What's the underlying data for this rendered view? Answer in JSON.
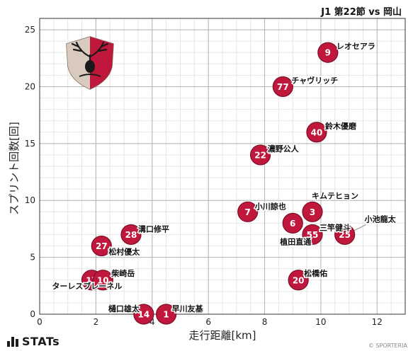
{
  "header": {
    "title": "J1 第22節 vs 岡山"
  },
  "footer": {
    "brand": "STATs",
    "credit": "© SPORTERIA"
  },
  "colors": {
    "point": "#c0183c",
    "point_stroke": "#7a0f26",
    "grid": "#cccccc",
    "grid_minor": "#e6e6e6"
  },
  "chart_data": {
    "type": "scatter",
    "xlabel": "走行距離[km]",
    "ylabel": "スプリント回数[回]",
    "xlim": [
      0,
      13
    ],
    "ylim": [
      0,
      26
    ],
    "xticks": [
      0,
      2,
      4,
      6,
      8,
      10,
      12
    ],
    "yticks": [
      0,
      5,
      10,
      15,
      20,
      25
    ],
    "grid": true,
    "points": [
      {
        "number": "9",
        "name": "レオセアラ",
        "x": 10.25,
        "y": 23
      },
      {
        "number": "77",
        "name": "チャヴリッチ",
        "x": 8.65,
        "y": 20
      },
      {
        "number": "40",
        "name": "鈴木優磨",
        "x": 9.85,
        "y": 16
      },
      {
        "number": "22",
        "name": "濃野公人",
        "x": 7.85,
        "y": 14
      },
      {
        "number": "3",
        "name": "キムテヒョン",
        "x": 9.7,
        "y": 9
      },
      {
        "number": "7",
        "name": "小川諒也",
        "x": 7.4,
        "y": 9
      },
      {
        "number": "6",
        "name": "植田直通",
        "x": 9.0,
        "y": 8
      },
      {
        "number": "55",
        "name": "三竿健斗",
        "x": 9.7,
        "y": 7
      },
      {
        "number": "25",
        "name": "小池龍太",
        "x": 10.85,
        "y": 7
      },
      {
        "number": "28",
        "name": "溝口修平",
        "x": 3.25,
        "y": 7
      },
      {
        "number": "27",
        "name": "松村優太",
        "x": 2.2,
        "y": 6
      },
      {
        "number": "17",
        "name": "ターレスブレーネル",
        "x": 1.85,
        "y": 3
      },
      {
        "number": "10",
        "name": "柴崎岳",
        "x": 2.25,
        "y": 3
      },
      {
        "number": "20",
        "name": "松橋佑",
        "x": 9.2,
        "y": 3
      },
      {
        "number": "14",
        "name": "樋口雄太",
        "x": 3.7,
        "y": 0
      },
      {
        "number": "1",
        "name": "早川友基",
        "x": 4.5,
        "y": 0
      }
    ]
  }
}
